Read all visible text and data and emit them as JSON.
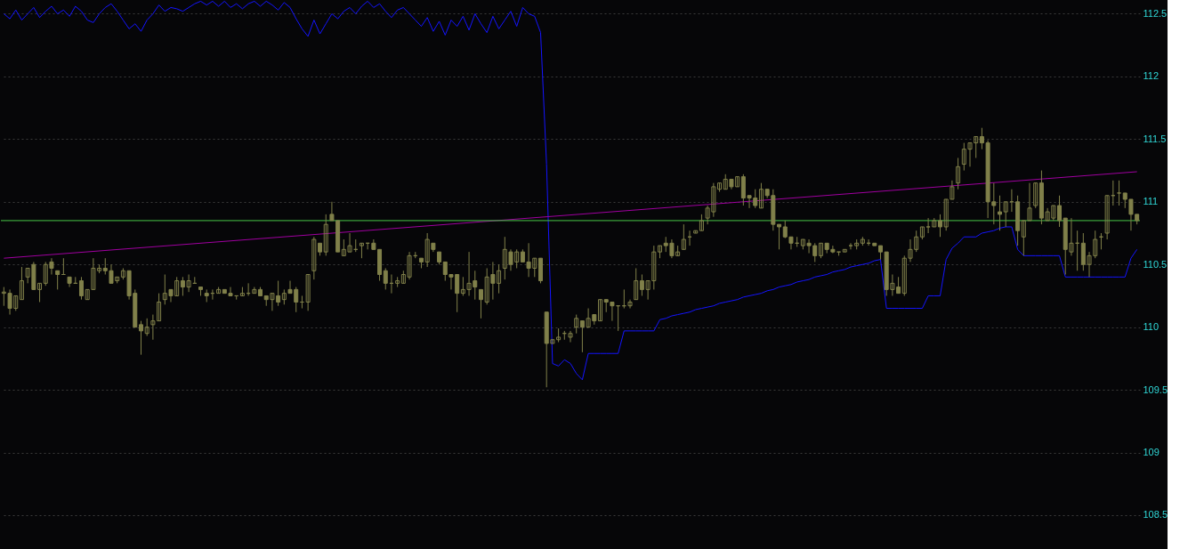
{
  "chart_data": {
    "type": "candlestick",
    "categories": [
      null,
      null,
      null,
      null,
      null,
      null,
      null,
      null,
      null,
      null,
      null,
      null,
      null,
      null,
      null,
      null,
      null,
      null,
      null,
      null,
      null,
      null,
      null,
      null,
      null,
      null,
      null,
      null,
      null,
      null,
      null,
      null,
      null,
      null,
      null,
      null,
      null,
      null,
      null,
      null,
      null,
      null,
      null,
      null,
      null,
      null,
      null,
      null,
      null,
      null,
      null,
      null,
      null,
      null,
      null,
      null,
      null,
      null,
      null,
      null,
      null,
      null,
      null,
      null,
      null,
      null,
      null,
      null,
      null,
      null,
      null,
      null,
      null,
      null,
      null,
      null,
      null,
      null,
      null,
      null,
      null,
      null,
      null,
      null,
      null,
      null,
      null,
      null,
      null,
      null,
      null,
      null,
      null,
      null,
      null,
      null,
      null,
      null,
      null,
      null,
      null,
      null,
      null,
      null,
      null,
      null,
      null,
      null,
      null,
      null,
      null,
      null,
      null,
      null,
      null,
      null,
      null,
      null,
      null,
      null,
      null,
      null,
      null,
      null,
      null,
      null,
      null,
      null,
      null,
      null,
      null,
      null,
      null,
      null,
      null,
      null,
      null,
      null,
      null,
      null,
      null,
      null,
      null,
      null,
      null,
      null,
      null,
      null,
      null,
      null,
      null,
      null,
      null,
      null,
      null,
      null,
      null,
      null,
      null,
      null,
      null,
      null,
      null,
      null,
      null,
      null,
      null,
      null,
      null,
      null,
      null,
      null,
      null,
      null,
      null,
      null,
      null,
      null,
      null,
      null,
      null,
      null,
      null,
      null,
      null,
      null,
      null,
      null,
      null,
      null,
      null
    ],
    "color": "#80804a",
    "ohlc": [
      [
        110.27,
        110.32,
        110.17,
        110.28
      ],
      [
        110.27,
        110.3,
        110.1,
        110.15
      ],
      [
        110.15,
        110.25,
        110.13,
        110.25
      ],
      [
        110.22,
        110.48,
        110.22,
        110.37
      ],
      [
        110.4,
        110.47,
        110.35,
        110.47
      ],
      [
        110.5,
        110.52,
        110.3,
        110.3
      ],
      [
        110.3,
        110.35,
        110.2,
        110.35
      ],
      [
        110.35,
        110.52,
        110.33,
        110.5
      ],
      [
        110.52,
        110.55,
        110.42,
        110.47
      ],
      [
        110.45,
        110.45,
        110.3,
        110.42
      ],
      [
        110.42,
        110.55,
        110.42,
        110.42
      ],
      [
        110.4,
        110.4,
        110.32,
        110.35
      ],
      [
        110.35,
        110.4,
        110.35,
        110.35
      ],
      [
        110.37,
        110.4,
        110.22,
        110.25
      ],
      [
        110.22,
        110.3,
        110.22,
        110.3
      ],
      [
        110.3,
        110.55,
        110.3,
        110.47
      ],
      [
        110.45,
        110.5,
        110.43,
        110.47
      ],
      [
        110.47,
        110.55,
        110.42,
        110.45
      ],
      [
        110.45,
        110.5,
        110.35,
        110.35
      ],
      [
        110.37,
        110.4,
        110.35,
        110.4
      ],
      [
        110.4,
        110.47,
        110.38,
        110.45
      ],
      [
        110.45,
        110.45,
        110.22,
        110.25
      ],
      [
        110.27,
        110.3,
        110.0,
        110.0
      ],
      [
        110.02,
        110.05,
        109.78,
        109.97
      ],
      [
        109.95,
        110.07,
        109.93,
        110.0
      ],
      [
        110.02,
        110.1,
        109.9,
        110.05
      ],
      [
        110.05,
        110.27,
        110.05,
        110.2
      ],
      [
        110.22,
        110.42,
        110.18,
        110.27
      ],
      [
        110.3,
        110.3,
        110.2,
        110.25
      ],
      [
        110.25,
        110.4,
        110.25,
        110.37
      ],
      [
        110.37,
        110.4,
        110.25,
        110.32
      ],
      [
        110.32,
        110.42,
        110.28,
        110.37
      ],
      [
        110.35,
        110.4,
        110.35,
        110.35
      ],
      [
        110.32,
        110.32,
        110.25,
        110.3
      ],
      [
        110.27,
        110.3,
        110.2,
        110.25
      ],
      [
        110.27,
        110.3,
        110.22,
        110.27
      ],
      [
        110.27,
        110.32,
        110.27,
        110.3
      ],
      [
        110.3,
        110.3,
        110.27,
        110.27
      ],
      [
        110.27,
        110.32,
        110.25,
        110.25
      ],
      [
        110.25,
        110.25,
        110.22,
        110.25
      ],
      [
        110.25,
        110.32,
        110.25,
        110.27
      ],
      [
        110.27,
        110.35,
        110.25,
        110.27
      ],
      [
        110.27,
        110.32,
        110.27,
        110.3
      ],
      [
        110.3,
        110.32,
        110.25,
        110.25
      ],
      [
        110.25,
        110.25,
        110.17,
        110.22
      ],
      [
        110.22,
        110.27,
        110.13,
        110.27
      ],
      [
        110.25,
        110.37,
        110.17,
        110.2
      ],
      [
        110.22,
        110.3,
        110.18,
        110.27
      ],
      [
        110.3,
        110.37,
        110.27,
        110.27
      ],
      [
        110.3,
        110.32,
        110.12,
        110.2
      ],
      [
        110.2,
        110.25,
        110.15,
        110.2
      ],
      [
        110.2,
        110.42,
        110.13,
        110.42
      ],
      [
        110.45,
        110.72,
        110.38,
        110.7
      ],
      [
        110.67,
        110.67,
        110.57,
        110.6
      ],
      [
        110.6,
        110.9,
        110.57,
        110.82
      ],
      [
        110.9,
        111.0,
        110.85,
        110.85
      ],
      [
        110.85,
        110.85,
        110.6,
        110.6
      ],
      [
        110.57,
        110.7,
        110.57,
        110.62
      ],
      [
        110.6,
        110.75,
        110.6,
        110.65
      ],
      [
        110.62,
        110.7,
        110.6,
        110.62
      ],
      [
        110.65,
        110.67,
        110.55,
        110.67
      ],
      [
        110.67,
        110.67,
        110.62,
        110.67
      ],
      [
        110.67,
        110.7,
        110.62,
        110.62
      ],
      [
        110.62,
        110.62,
        110.37,
        110.42
      ],
      [
        110.45,
        110.47,
        110.3,
        110.35
      ],
      [
        110.35,
        110.42,
        110.27,
        110.35
      ],
      [
        110.35,
        110.4,
        110.32,
        110.37
      ],
      [
        110.35,
        110.45,
        110.35,
        110.42
      ],
      [
        110.4,
        110.6,
        110.38,
        110.57
      ],
      [
        110.57,
        110.6,
        110.55,
        110.57
      ],
      [
        110.55,
        110.55,
        110.47,
        110.52
      ],
      [
        110.52,
        110.75,
        110.48,
        110.7
      ],
      [
        110.67,
        110.67,
        110.6,
        110.62
      ],
      [
        110.6,
        110.6,
        110.5,
        110.52
      ],
      [
        110.52,
        110.52,
        110.37,
        110.42
      ],
      [
        110.42,
        110.42,
        110.3,
        110.4
      ],
      [
        110.42,
        110.42,
        110.12,
        110.27
      ],
      [
        110.27,
        110.4,
        110.25,
        110.3
      ],
      [
        110.3,
        110.6,
        110.25,
        110.35
      ],
      [
        110.37,
        110.45,
        110.22,
        110.32
      ],
      [
        110.3,
        110.3,
        110.07,
        110.22
      ],
      [
        110.2,
        110.47,
        110.18,
        110.4
      ],
      [
        110.42,
        110.52,
        110.22,
        110.35
      ],
      [
        110.35,
        110.5,
        110.27,
        110.45
      ],
      [
        110.47,
        110.72,
        110.38,
        110.62
      ],
      [
        110.6,
        110.62,
        110.45,
        110.5
      ],
      [
        110.52,
        110.62,
        110.47,
        110.6
      ],
      [
        110.6,
        110.62,
        110.52,
        110.52
      ],
      [
        110.52,
        110.67,
        110.4,
        110.47
      ],
      [
        110.47,
        110.55,
        110.4,
        110.55
      ],
      [
        110.55,
        110.55,
        110.35,
        110.37
      ],
      [
        110.12,
        110.12,
        109.52,
        109.87
      ],
      [
        109.87,
        109.9,
        109.87,
        109.9
      ],
      [
        109.9,
        109.99,
        109.88,
        109.92
      ],
      [
        109.95,
        109.97,
        109.9,
        109.95
      ],
      [
        109.92,
        109.97,
        109.88,
        109.95
      ],
      [
        110.0,
        110.1,
        109.95,
        110.07
      ],
      [
        110.05,
        110.05,
        109.8,
        110.0
      ],
      [
        110.0,
        110.15,
        110.0,
        110.07
      ],
      [
        110.1,
        110.1,
        110.02,
        110.05
      ],
      [
        110.05,
        110.22,
        110.05,
        110.22
      ],
      [
        110.22,
        110.22,
        110.12,
        110.2
      ],
      [
        110.2,
        110.2,
        110.05,
        110.17
      ],
      [
        110.17,
        110.17,
        109.97,
        110.17
      ],
      [
        110.17,
        110.3,
        110.15,
        110.17
      ],
      [
        110.17,
        110.22,
        110.15,
        110.2
      ],
      [
        110.22,
        110.47,
        110.22,
        110.37
      ],
      [
        110.37,
        110.42,
        110.25,
        110.3
      ],
      [
        110.3,
        110.37,
        110.22,
        110.37
      ],
      [
        110.37,
        110.65,
        110.3,
        110.6
      ],
      [
        110.6,
        110.65,
        110.55,
        110.65
      ],
      [
        110.67,
        110.72,
        110.6,
        110.65
      ],
      [
        110.67,
        110.7,
        110.55,
        110.57
      ],
      [
        110.57,
        110.65,
        110.57,
        110.6
      ],
      [
        110.62,
        110.82,
        110.62,
        110.7
      ],
      [
        110.72,
        110.77,
        110.65,
        110.72
      ],
      [
        110.75,
        110.77,
        110.75,
        110.77
      ],
      [
        110.77,
        110.9,
        110.77,
        110.85
      ],
      [
        110.87,
        110.97,
        110.82,
        110.95
      ],
      [
        110.92,
        111.15,
        110.88,
        111.12
      ],
      [
        111.1,
        111.15,
        111.08,
        111.15
      ],
      [
        111.1,
        111.22,
        111.1,
        111.18
      ],
      [
        111.18,
        111.18,
        111.1,
        111.12
      ],
      [
        111.12,
        111.2,
        111.12,
        111.2
      ],
      [
        111.2,
        111.22,
        110.97,
        111.03
      ],
      [
        111.05,
        111.05,
        110.95,
        111.03
      ],
      [
        111.03,
        111.1,
        110.95,
        110.97
      ],
      [
        110.95,
        111.15,
        110.95,
        111.1
      ],
      [
        111.1,
        111.1,
        111.03,
        111.05
      ],
      [
        111.05,
        111.1,
        110.77,
        110.82
      ],
      [
        110.82,
        110.82,
        110.62,
        110.8
      ],
      [
        110.8,
        110.85,
        110.71,
        110.72
      ],
      [
        110.72,
        110.72,
        110.62,
        110.67
      ],
      [
        110.67,
        110.72,
        110.64,
        110.67
      ],
      [
        110.65,
        110.7,
        110.62,
        110.7
      ],
      [
        110.67,
        110.7,
        110.59,
        110.65
      ],
      [
        110.65,
        110.67,
        110.52,
        110.57
      ],
      [
        110.57,
        110.67,
        110.55,
        110.67
      ],
      [
        110.67,
        110.67,
        110.59,
        110.62
      ],
      [
        110.62,
        110.65,
        110.59,
        110.6
      ],
      [
        110.6,
        110.6,
        110.57,
        110.6
      ],
      [
        110.6,
        110.62,
        110.6,
        110.62
      ],
      [
        110.65,
        110.67,
        110.62,
        110.65
      ],
      [
        110.65,
        110.7,
        110.62,
        110.67
      ],
      [
        110.67,
        110.72,
        110.65,
        110.7
      ],
      [
        110.67,
        110.7,
        110.65,
        110.67
      ],
      [
        110.67,
        110.67,
        110.65,
        110.65
      ],
      [
        110.65,
        110.65,
        110.54,
        110.6
      ],
      [
        110.6,
        110.6,
        110.25,
        110.3
      ],
      [
        110.3,
        110.42,
        110.25,
        110.35
      ],
      [
        110.32,
        110.4,
        110.27,
        110.27
      ],
      [
        110.27,
        110.57,
        110.25,
        110.55
      ],
      [
        110.55,
        110.7,
        110.52,
        110.62
      ],
      [
        110.62,
        110.77,
        110.6,
        110.72
      ],
      [
        110.72,
        110.8,
        110.7,
        110.8
      ],
      [
        110.8,
        110.87,
        110.75,
        110.8
      ],
      [
        110.8,
        110.87,
        110.8,
        110.85
      ],
      [
        110.85,
        110.9,
        110.72,
        110.8
      ],
      [
        110.8,
        111.02,
        110.77,
        111.02
      ],
      [
        111.02,
        111.17,
        111.02,
        111.12
      ],
      [
        111.15,
        111.35,
        111.1,
        111.28
      ],
      [
        111.3,
        111.47,
        111.25,
        111.42
      ],
      [
        111.42,
        111.47,
        111.28,
        111.47
      ],
      [
        111.47,
        111.52,
        111.35,
        111.52
      ],
      [
        111.52,
        111.59,
        111.42,
        111.47
      ],
      [
        111.47,
        111.49,
        110.87,
        111.0
      ],
      [
        111.0,
        111.15,
        110.82,
        110.97
      ],
      [
        110.92,
        111.05,
        110.77,
        110.9
      ],
      [
        110.92,
        111.0,
        110.8,
        111.0
      ],
      [
        111.0,
        111.1,
        110.92,
        111.0
      ],
      [
        111.0,
        111.05,
        110.65,
        110.77
      ],
      [
        110.72,
        110.85,
        110.57,
        110.85
      ],
      [
        110.85,
        111.15,
        110.85,
        110.95
      ],
      [
        110.97,
        111.15,
        110.95,
        111.15
      ],
      [
        111.15,
        111.25,
        110.82,
        110.87
      ],
      [
        110.85,
        110.95,
        110.85,
        110.92
      ],
      [
        110.87,
        110.97,
        110.85,
        110.97
      ],
      [
        110.97,
        111.05,
        110.8,
        110.85
      ],
      [
        110.87,
        110.87,
        110.42,
        110.62
      ],
      [
        110.6,
        110.87,
        110.57,
        110.67
      ],
      [
        110.67,
        110.77,
        110.45,
        110.67
      ],
      [
        110.67,
        110.75,
        110.45,
        110.5
      ],
      [
        110.5,
        110.6,
        110.4,
        110.57
      ],
      [
        110.57,
        110.77,
        110.55,
        110.7
      ],
      [
        110.72,
        110.75,
        110.62,
        110.72
      ],
      [
        110.75,
        111.05,
        110.7,
        111.05
      ],
      [
        111.05,
        111.17,
        110.97,
        111.05
      ],
      [
        111.07,
        111.17,
        110.97,
        111.07
      ],
      [
        111.07,
        111.07,
        110.95,
        111.02
      ],
      [
        111.02,
        111.02,
        110.77,
        110.9
      ],
      [
        110.9,
        110.9,
        110.82,
        110.85
      ]
    ],
    "series": [
      {
        "type": "line",
        "color": "#1414ff",
        "values": [
          112.5,
          112.46,
          112.53,
          112.45,
          112.5,
          112.55,
          112.47,
          112.52,
          112.56,
          112.5,
          112.53,
          112.48,
          112.56,
          112.52,
          112.45,
          112.43,
          112.5,
          112.55,
          112.58,
          112.52,
          112.45,
          112.38,
          112.42,
          112.36,
          112.45,
          112.5,
          112.57,
          112.52,
          112.55,
          112.54,
          112.52,
          112.55,
          112.58,
          112.6,
          112.57,
          112.6,
          112.56,
          112.6,
          112.55,
          112.58,
          112.54,
          112.58,
          112.6,
          112.56,
          112.6,
          112.57,
          112.53,
          112.59,
          112.55,
          112.46,
          112.38,
          112.32,
          112.45,
          112.34,
          112.42,
          112.5,
          112.46,
          112.52,
          112.55,
          112.5,
          112.56,
          112.6,
          112.55,
          112.58,
          112.52,
          112.47,
          112.53,
          112.55,
          112.5,
          112.45,
          112.4,
          112.47,
          112.36,
          112.44,
          112.33,
          112.45,
          112.4,
          112.48,
          112.37,
          112.5,
          112.42,
          112.35,
          112.48,
          112.38,
          112.45,
          112.52,
          112.4,
          112.55,
          112.5,
          112.48,
          112.35,
          111.3,
          109.71,
          109.69,
          109.74,
          109.71,
          109.63,
          109.58,
          109.79,
          109.79,
          109.79,
          109.79,
          109.79,
          109.79,
          109.97,
          109.97,
          109.97,
          109.97,
          109.97,
          109.97,
          110.06,
          110.07,
          110.09,
          110.1,
          110.11,
          110.12,
          110.14,
          110.15,
          110.16,
          110.17,
          110.19,
          110.2,
          110.21,
          110.22,
          110.24,
          110.25,
          110.26,
          110.27,
          110.29,
          110.3,
          110.32,
          110.33,
          110.34,
          110.36,
          110.37,
          110.38,
          110.4,
          110.41,
          110.42,
          110.44,
          110.45,
          110.46,
          110.48,
          110.49,
          110.5,
          110.51,
          110.53,
          110.54,
          110.15,
          110.15,
          110.15,
          110.15,
          110.15,
          110.15,
          110.15,
          110.25,
          110.25,
          110.25,
          110.54,
          110.63,
          110.67,
          110.72,
          110.72,
          110.72,
          110.75,
          110.76,
          110.77,
          110.79,
          110.8,
          110.8,
          110.62,
          110.57,
          110.57,
          110.57,
          110.57,
          110.57,
          110.57,
          110.57,
          110.4,
          110.4,
          110.4,
          110.4,
          110.4,
          110.4,
          110.4,
          110.4,
          110.4,
          110.4,
          110.4,
          110.55,
          110.62
        ]
      },
      {
        "type": "line",
        "color": "#a000a0",
        "values": [
          110.55,
          null,
          null,
          null,
          null,
          null,
          null,
          null,
          null,
          null,
          null,
          null,
          null,
          null,
          null,
          null,
          null,
          null,
          null,
          null,
          null,
          null,
          null,
          null,
          null,
          null,
          null,
          null,
          null,
          null,
          null,
          null,
          null,
          null,
          null,
          null,
          null,
          null,
          null,
          null,
          null,
          null,
          null,
          null,
          null,
          null,
          null,
          null,
          null,
          null,
          null,
          null,
          null,
          null,
          null,
          null,
          null,
          null,
          null,
          null,
          null,
          null,
          null,
          null,
          null,
          null,
          null,
          null,
          null,
          null,
          null,
          null,
          null,
          null,
          null,
          null,
          null,
          null,
          null,
          null,
          null,
          null,
          null,
          null,
          null,
          null,
          null,
          null,
          null,
          null,
          null,
          null,
          null,
          null,
          null,
          null,
          null,
          null,
          null,
          null,
          null,
          null,
          null,
          null,
          null,
          null,
          null,
          null,
          null,
          null,
          null,
          null,
          null,
          null,
          null,
          null,
          null,
          null,
          null,
          null,
          null,
          null,
          null,
          null,
          null,
          null,
          null,
          null,
          null,
          null,
          null,
          null,
          null,
          null,
          null,
          null,
          null,
          null,
          null,
          null,
          null,
          null,
          null,
          null,
          null,
          null,
          null,
          null,
          null,
          null,
          null,
          null,
          null,
          null,
          null,
          null,
          null,
          null,
          null,
          null,
          null,
          null,
          null,
          null,
          null,
          null,
          null,
          null,
          null,
          null,
          null,
          null,
          null,
          null,
          null,
          null,
          null,
          null,
          null,
          null,
          null,
          null,
          null,
          null,
          null,
          null,
          null,
          null,
          null,
          null,
          111.24
        ]
      }
    ],
    "ref_lines": [
      {
        "axis": "y",
        "value": 110.85,
        "color": "#48c848"
      }
    ],
    "ylim": [
      108.23,
      112.61
    ],
    "yticks": [
      108.5,
      109,
      109.5,
      110,
      110.5,
      111,
      111.5,
      112,
      112.5
    ],
    "grid": "y",
    "tick_labels": "y"
  }
}
